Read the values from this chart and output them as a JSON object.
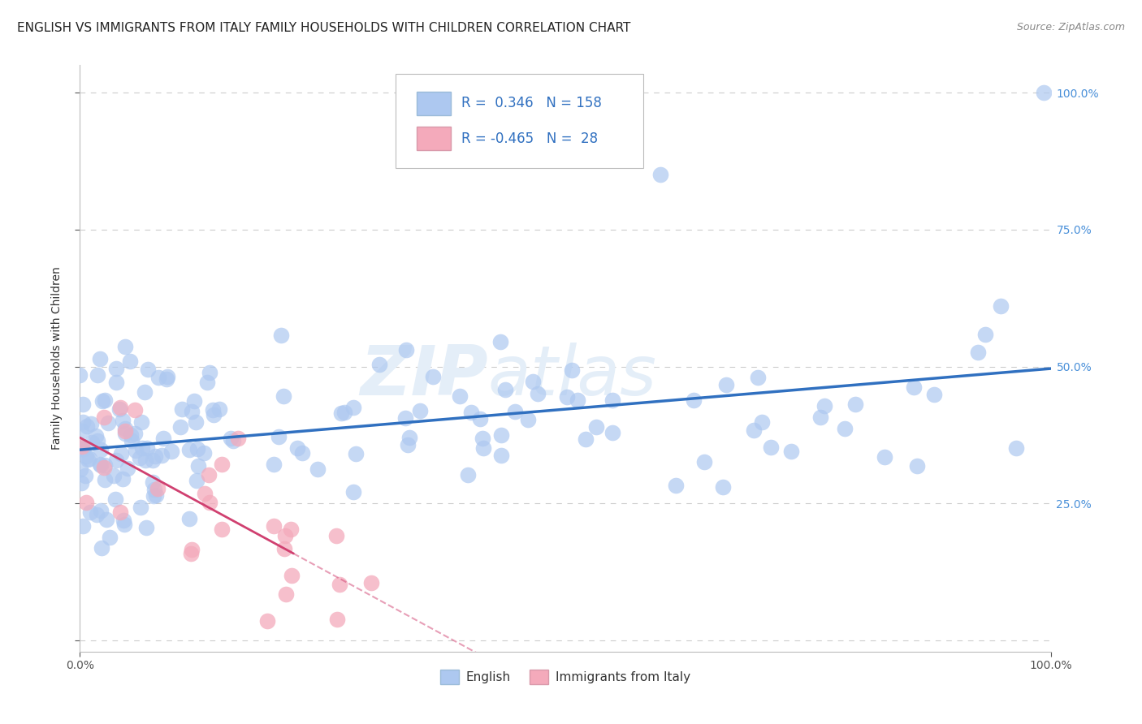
{
  "title": "ENGLISH VS IMMIGRANTS FROM ITALY FAMILY HOUSEHOLDS WITH CHILDREN CORRELATION CHART",
  "source": "Source: ZipAtlas.com",
  "ylabel": "Family Households with Children",
  "background_color": "#ffffff",
  "english": {
    "R": 0.346,
    "N": 158,
    "color": "#adc8f0",
    "line_color": "#3070c0"
  },
  "italy": {
    "R": -0.465,
    "N": 28,
    "color": "#f4aabb",
    "line_color": "#d04070"
  },
  "xlim": [
    0.0,
    1.0
  ],
  "ylim": [
    -0.02,
    1.05
  ],
  "grid_color": "#cccccc",
  "title_fontsize": 11,
  "axis_fontsize": 10,
  "legend_fontsize": 12
}
